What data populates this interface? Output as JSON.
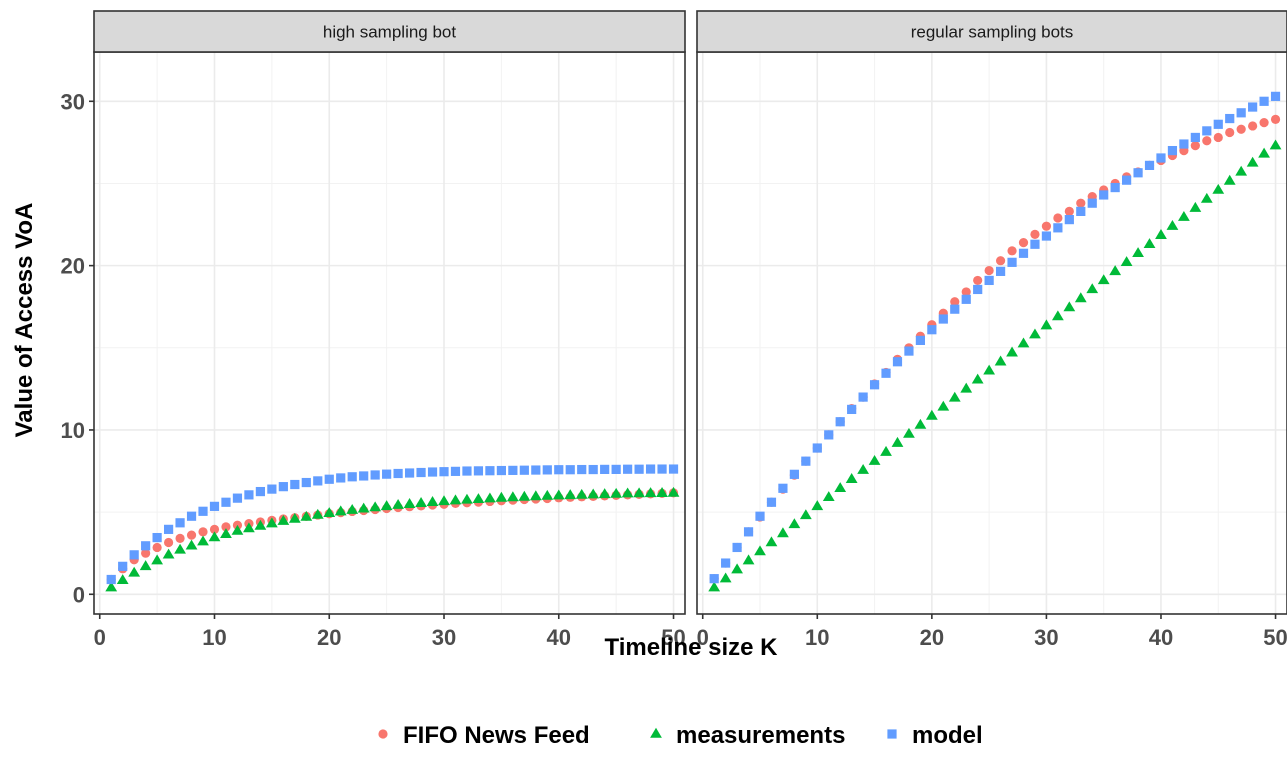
{
  "chart_data": {
    "type": "scatter",
    "xlabel": "Timeline size K",
    "ylabel": "Value of Access VoA",
    "xlim": [
      -0.5,
      51
    ],
    "ylim": [
      -1.2,
      33
    ],
    "x_ticks": [
      0,
      10,
      20,
      30,
      40,
      50
    ],
    "y_ticks": [
      0,
      10,
      20,
      30
    ],
    "grid": true,
    "legend_position": "bottom",
    "series_styles": [
      {
        "name": "FIFO News Feed",
        "color": "#F8766D",
        "shape": "circle"
      },
      {
        "name": "measurements",
        "color": "#00BA38",
        "shape": "triangle"
      },
      {
        "name": "model",
        "color": "#619CFF",
        "shape": "square"
      }
    ],
    "panels": [
      {
        "title": "high sampling bot",
        "series": [
          {
            "name": "FIFO News Feed",
            "x": [
              1,
              2,
              3,
              4,
              5,
              6,
              7,
              8,
              9,
              10,
              11,
              12,
              13,
              14,
              15,
              16,
              17,
              18,
              19,
              20,
              21,
              22,
              23,
              24,
              25,
              26,
              27,
              28,
              29,
              30,
              31,
              32,
              33,
              34,
              35,
              36,
              37,
              38,
              39,
              40,
              41,
              42,
              43,
              44,
              45,
              46,
              47,
              48,
              49,
              50
            ],
            "y": [
              0.9,
              1.55,
              2.1,
              2.5,
              2.85,
              3.15,
              3.4,
              3.6,
              3.8,
              3.95,
              4.1,
              4.2,
              4.3,
              4.4,
              4.5,
              4.58,
              4.66,
              4.74,
              4.82,
              4.9,
              4.97,
              5.04,
              5.1,
              5.16,
              5.22,
              5.28,
              5.33,
              5.38,
              5.43,
              5.48,
              5.53,
              5.57,
              5.61,
              5.65,
              5.69,
              5.73,
              5.77,
              5.8,
              5.83,
              5.87,
              5.9,
              5.93,
              5.96,
              5.99,
              6.02,
              6.05,
              6.08,
              6.11,
              6.14,
              6.17
            ]
          },
          {
            "name": "measurements",
            "x": [
              1,
              2,
              3,
              4,
              5,
              6,
              7,
              8,
              9,
              10,
              11,
              12,
              13,
              14,
              15,
              16,
              17,
              18,
              19,
              20,
              21,
              22,
              23,
              24,
              25,
              26,
              27,
              28,
              29,
              30,
              31,
              32,
              33,
              34,
              35,
              36,
              37,
              38,
              39,
              40,
              41,
              42,
              43,
              44,
              45,
              46,
              47,
              48,
              49,
              50
            ],
            "y": [
              0.4,
              0.85,
              1.3,
              1.7,
              2.05,
              2.4,
              2.7,
              2.95,
              3.2,
              3.45,
              3.65,
              3.85,
              4.0,
              4.15,
              4.3,
              4.45,
              4.58,
              4.7,
              4.82,
              4.93,
              5.03,
              5.12,
              5.2,
              5.28,
              5.35,
              5.42,
              5.48,
              5.54,
              5.6,
              5.65,
              5.7,
              5.74,
              5.78,
              5.82,
              5.86,
              5.89,
              5.92,
              5.95,
              5.98,
              6.0,
              6.02,
              6.04,
              6.06,
              6.08,
              6.1,
              6.12,
              6.13,
              6.14,
              6.15,
              6.16
            ]
          },
          {
            "name": "model",
            "x": [
              1,
              2,
              3,
              4,
              5,
              6,
              7,
              8,
              9,
              10,
              11,
              12,
              13,
              14,
              15,
              16,
              17,
              18,
              19,
              20,
              21,
              22,
              23,
              24,
              25,
              26,
              27,
              28,
              29,
              30,
              31,
              32,
              33,
              34,
              35,
              36,
              37,
              38,
              39,
              40,
              41,
              42,
              43,
              44,
              45,
              46,
              47,
              48,
              49,
              50
            ],
            "y": [
              0.9,
              1.7,
              2.4,
              2.95,
              3.45,
              3.95,
              4.35,
              4.75,
              5.05,
              5.35,
              5.6,
              5.85,
              6.05,
              6.25,
              6.4,
              6.55,
              6.68,
              6.8,
              6.9,
              7.0,
              7.08,
              7.15,
              7.2,
              7.26,
              7.31,
              7.35,
              7.38,
              7.41,
              7.44,
              7.46,
              7.48,
              7.5,
              7.51,
              7.52,
              7.53,
              7.54,
              7.55,
              7.56,
              7.57,
              7.58,
              7.58,
              7.59,
              7.59,
              7.6,
              7.6,
              7.61,
              7.61,
              7.62,
              7.62,
              7.62
            ]
          }
        ]
      },
      {
        "title": "regular sampling bots",
        "series": [
          {
            "name": "FIFO News Feed",
            "x": [
              1,
              2,
              3,
              4,
              5,
              6,
              7,
              8,
              9,
              10,
              11,
              12,
              13,
              14,
              15,
              16,
              17,
              18,
              19,
              20,
              21,
              22,
              23,
              24,
              25,
              26,
              27,
              28,
              29,
              30,
              31,
              32,
              33,
              34,
              35,
              36,
              37,
              38,
              39,
              40,
              41,
              42,
              43,
              44,
              45,
              46,
              47,
              48,
              49,
              50
            ],
            "y": [
              0.95,
              1.9,
              2.85,
              3.8,
              4.7,
              5.6,
              6.4,
              7.25,
              8.1,
              8.9,
              9.7,
              10.5,
              11.3,
              12.0,
              12.8,
              13.5,
              14.3,
              15.0,
              15.7,
              16.4,
              17.1,
              17.8,
              18.4,
              19.1,
              19.7,
              20.3,
              20.9,
              21.4,
              21.9,
              22.4,
              22.9,
              23.3,
              23.8,
              24.2,
              24.6,
              25.0,
              25.4,
              25.7,
              26.1,
              26.4,
              26.7,
              27.0,
              27.3,
              27.6,
              27.8,
              28.1,
              28.3,
              28.5,
              28.7,
              28.9
            ]
          },
          {
            "name": "measurements",
            "x": [
              1,
              2,
              3,
              4,
              5,
              6,
              7,
              8,
              9,
              10,
              11,
              12,
              13,
              14,
              15,
              16,
              17,
              18,
              19,
              20,
              21,
              22,
              23,
              24,
              25,
              26,
              27,
              28,
              29,
              30,
              31,
              32,
              33,
              34,
              35,
              36,
              37,
              38,
              39,
              40,
              41,
              42,
              43,
              44,
              45,
              46,
              47,
              48,
              49,
              50
            ],
            "y": [
              0.4,
              0.95,
              1.5,
              2.05,
              2.6,
              3.15,
              3.7,
              4.25,
              4.8,
              5.35,
              5.9,
              6.45,
              7.0,
              7.55,
              8.1,
              8.65,
              9.2,
              9.75,
              10.3,
              10.85,
              11.4,
              11.95,
              12.5,
              13.05,
              13.6,
              14.15,
              14.7,
              15.25,
              15.8,
              16.35,
              16.9,
              17.45,
              18.0,
              18.55,
              19.1,
              19.65,
              20.2,
              20.75,
              21.3,
              21.85,
              22.4,
              22.95,
              23.5,
              24.05,
              24.6,
              25.15,
              25.7,
              26.25,
              26.8,
              27.3
            ]
          },
          {
            "name": "model",
            "x": [
              1,
              2,
              3,
              4,
              5,
              6,
              7,
              8,
              9,
              10,
              11,
              12,
              13,
              14,
              15,
              16,
              17,
              18,
              19,
              20,
              21,
              22,
              23,
              24,
              25,
              26,
              27,
              28,
              29,
              30,
              31,
              32,
              33,
              34,
              35,
              36,
              37,
              38,
              39,
              40,
              41,
              42,
              43,
              44,
              45,
              46,
              47,
              48,
              49,
              50
            ],
            "y": [
              0.95,
              1.9,
              2.85,
              3.8,
              4.75,
              5.6,
              6.45,
              7.3,
              8.1,
              8.9,
              9.7,
              10.5,
              11.25,
              12.0,
              12.75,
              13.45,
              14.15,
              14.8,
              15.45,
              16.1,
              16.75,
              17.35,
              17.95,
              18.55,
              19.1,
              19.65,
              20.2,
              20.75,
              21.3,
              21.8,
              22.3,
              22.8,
              23.3,
              23.8,
              24.3,
              24.75,
              25.2,
              25.65,
              26.1,
              26.55,
              27.0,
              27.4,
              27.8,
              28.2,
              28.6,
              28.95,
              29.3,
              29.65,
              30.0,
              30.3
            ]
          }
        ]
      }
    ]
  }
}
